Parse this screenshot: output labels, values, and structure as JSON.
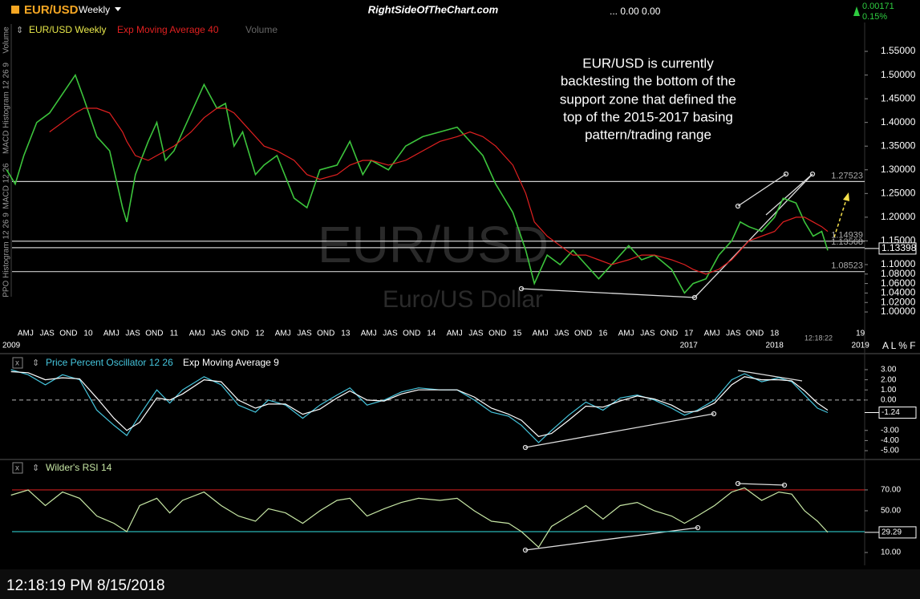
{
  "header": {
    "symbol": "EUR/USD",
    "interval": "Weekly",
    "site": "RightSideOfTheChart.com",
    "ohlc": "... 0.00 0.00",
    "change": "0.00171",
    "change_pct": "0.15%"
  },
  "side_labels": [
    "Volume",
    "MACD Histogram 12 26 9",
    "MACD 12 26",
    "PPO Histogram 12 26 9"
  ],
  "chart_data": [
    {
      "type": "line",
      "watermark": "EUR/USD",
      "subtitle": "Euro/US Dollar",
      "annotation": [
        "EUR/USD is currently",
        "backtesting the bottom of the",
        "support zone that defined the",
        "top of the 2015-2017 basing",
        "pattern/trading range"
      ],
      "volume_label": "Volume",
      "clock": "12:18:22",
      "toolbar": "A L % F",
      "x": [
        2009.05,
        2009.15,
        2009.25,
        2009.4,
        2009.55,
        2009.7,
        2009.85,
        2009.95,
        2010.1,
        2010.25,
        2010.4,
        2010.45,
        2010.55,
        2010.7,
        2010.8,
        2010.9,
        2011.0,
        2011.2,
        2011.35,
        2011.5,
        2011.6,
        2011.7,
        2011.8,
        2011.95,
        2012.05,
        2012.2,
        2012.4,
        2012.55,
        2012.7,
        2012.9,
        2013.05,
        2013.2,
        2013.3,
        2013.5,
        2013.7,
        2013.9,
        2014.1,
        2014.3,
        2014.45,
        2014.6,
        2014.75,
        2014.95,
        2015.1,
        2015.2,
        2015.35,
        2015.5,
        2015.65,
        2015.8,
        2015.95,
        2016.1,
        2016.3,
        2016.45,
        2016.6,
        2016.8,
        2016.95,
        2017.05,
        2017.2,
        2017.35,
        2017.5,
        2017.6,
        2017.7,
        2017.85,
        2018.0,
        2018.1,
        2018.25,
        2018.35,
        2018.45,
        2018.55,
        2018.62
      ],
      "series": [
        {
          "name": "EUR/USD Weekly",
          "color": "#3cc43c",
          "legend_color": "#e8e84a",
          "values": [
            1.3,
            1.27,
            1.33,
            1.4,
            1.42,
            1.46,
            1.5,
            1.45,
            1.37,
            1.34,
            1.22,
            1.19,
            1.29,
            1.36,
            1.4,
            1.32,
            1.34,
            1.42,
            1.48,
            1.43,
            1.44,
            1.35,
            1.38,
            1.29,
            1.31,
            1.33,
            1.24,
            1.22,
            1.3,
            1.31,
            1.36,
            1.29,
            1.32,
            1.3,
            1.35,
            1.37,
            1.38,
            1.39,
            1.36,
            1.33,
            1.27,
            1.21,
            1.13,
            1.06,
            1.12,
            1.1,
            1.13,
            1.1,
            1.07,
            1.1,
            1.14,
            1.11,
            1.12,
            1.09,
            1.04,
            1.06,
            1.07,
            1.12,
            1.15,
            1.19,
            1.18,
            1.17,
            1.2,
            1.24,
            1.23,
            1.19,
            1.16,
            1.17,
            1.13
          ]
        },
        {
          "name": "Exp Moving Average 40",
          "color": "#e02020",
          "legend_color": "#e02020",
          "values": [
            null,
            null,
            null,
            null,
            1.38,
            1.4,
            1.42,
            1.43,
            1.43,
            1.42,
            1.38,
            1.36,
            1.33,
            1.32,
            1.33,
            1.34,
            1.35,
            1.38,
            1.41,
            1.43,
            1.43,
            1.42,
            1.4,
            1.37,
            1.35,
            1.34,
            1.32,
            1.29,
            1.28,
            1.29,
            1.31,
            1.32,
            1.32,
            1.31,
            1.32,
            1.34,
            1.36,
            1.37,
            1.38,
            1.37,
            1.35,
            1.31,
            1.25,
            1.19,
            1.16,
            1.14,
            1.12,
            1.12,
            1.11,
            1.1,
            1.11,
            1.12,
            1.12,
            1.11,
            1.1,
            1.09,
            1.08,
            1.09,
            1.11,
            1.13,
            1.15,
            1.16,
            1.17,
            1.19,
            1.2,
            1.2,
            1.19,
            1.18,
            1.17
          ]
        }
      ],
      "xlim": [
        2009,
        2019.05
      ],
      "ylim": [
        0.973,
        1.611
      ],
      "yticks": [
        {
          "value": 1.55,
          "label": "1.55000"
        },
        {
          "value": 1.5,
          "label": "1.50000"
        },
        {
          "value": 1.45,
          "label": "1.45000"
        },
        {
          "value": 1.4,
          "label": "1.40000"
        },
        {
          "value": 1.35,
          "label": "1.35000"
        },
        {
          "value": 1.3,
          "label": "1.30000"
        },
        {
          "value": 1.25,
          "label": "1.25000"
        },
        {
          "value": 1.2,
          "label": "1.20000"
        },
        {
          "value": 1.15,
          "label": "1.15000"
        },
        {
          "value": 1.1,
          "label": "1.10000"
        },
        {
          "value": 1.08,
          "label": "1.08000"
        },
        {
          "value": 1.06,
          "label": "1.06000"
        },
        {
          "value": 1.04,
          "label": "1.04000"
        },
        {
          "value": 1.02,
          "label": "1.02000"
        },
        {
          "value": 1.0,
          "label": "1.00000"
        }
      ],
      "hlines": [
        {
          "value": 1.27523,
          "label": "1.27523"
        },
        {
          "value": 1.14939,
          "label": "1.14939"
        },
        {
          "value": 1.13568,
          "label": "1.13568"
        },
        {
          "value": 1.08523,
          "label": "1.08523"
        }
      ],
      "last": {
        "value": 1.13398,
        "label": "1.13398"
      },
      "xticks": [
        {
          "value": 2009.27,
          "label": "AMJ"
        },
        {
          "value": 2009.52,
          "label": "JAS"
        },
        {
          "value": 2009.77,
          "label": "OND"
        },
        {
          "value": 2010,
          "label": "10"
        },
        {
          "value": 2010.27,
          "label": "AMJ"
        },
        {
          "value": 2010.52,
          "label": "JAS"
        },
        {
          "value": 2010.77,
          "label": "OND"
        },
        {
          "value": 2011,
          "label": "11"
        },
        {
          "value": 2011.27,
          "label": "AMJ"
        },
        {
          "value": 2011.52,
          "label": "JAS"
        },
        {
          "value": 2011.77,
          "label": "OND"
        },
        {
          "value": 2012,
          "label": "12"
        },
        {
          "value": 2012.27,
          "label": "AMJ"
        },
        {
          "value": 2012.52,
          "label": "JAS"
        },
        {
          "value": 2012.77,
          "label": "OND"
        },
        {
          "value": 2013,
          "label": "13"
        },
        {
          "value": 2013.27,
          "label": "AMJ"
        },
        {
          "value": 2013.52,
          "label": "JAS"
        },
        {
          "value": 2013.77,
          "label": "OND"
        },
        {
          "value": 2014,
          "label": "14"
        },
        {
          "value": 2014.27,
          "label": "AMJ"
        },
        {
          "value": 2014.52,
          "label": "JAS"
        },
        {
          "value": 2014.77,
          "label": "OND"
        },
        {
          "value": 2015,
          "label": "15"
        },
        {
          "value": 2015.27,
          "label": "AMJ"
        },
        {
          "value": 2015.52,
          "label": "JAS"
        },
        {
          "value": 2015.77,
          "label": "OND"
        },
        {
          "value": 2016,
          "label": "16"
        },
        {
          "value": 2016.27,
          "label": "AMJ"
        },
        {
          "value": 2016.52,
          "label": "JAS"
        },
        {
          "value": 2016.77,
          "label": "OND"
        },
        {
          "value": 2017,
          "label": "17"
        },
        {
          "value": 2017.27,
          "label": "AMJ"
        },
        {
          "value": 2017.52,
          "label": "JAS"
        },
        {
          "value": 2017.77,
          "label": "OND"
        },
        {
          "value": 2018,
          "label": "18"
        },
        {
          "value": 2019,
          "label": "19"
        }
      ],
      "xticks2": [
        2009,
        2017,
        2018,
        2019
      ]
    },
    {
      "type": "line",
      "x": [
        2009.1,
        2009.3,
        2009.5,
        2009.7,
        2009.9,
        2010.1,
        2010.3,
        2010.45,
        2010.6,
        2010.8,
        2010.95,
        2011.1,
        2011.35,
        2011.55,
        2011.75,
        2011.95,
        2012.1,
        2012.3,
        2012.5,
        2012.7,
        2012.9,
        2013.05,
        2013.25,
        2013.45,
        2013.65,
        2013.85,
        2014.1,
        2014.3,
        2014.5,
        2014.7,
        2014.9,
        2015.05,
        2015.25,
        2015.4,
        2015.6,
        2015.8,
        2016.0,
        2016.2,
        2016.4,
        2016.6,
        2016.8,
        2016.95,
        2017.1,
        2017.3,
        2017.5,
        2017.65,
        2017.85,
        2018.05,
        2018.2,
        2018.35,
        2018.5,
        2018.62
      ],
      "series": [
        {
          "name": "Price Percent Oscillator 12 26",
          "color": "#45c4dc",
          "values": [
            3.0,
            2.5,
            1.5,
            2.5,
            2.0,
            -1.0,
            -2.5,
            -3.5,
            -1.5,
            1.0,
            -0.3,
            1.0,
            2.3,
            1.5,
            -0.5,
            -1.2,
            0.0,
            -0.5,
            -1.8,
            -0.5,
            0.5,
            1.2,
            -0.5,
            0.0,
            0.8,
            1.2,
            1.0,
            1.0,
            0.0,
            -1.2,
            -1.6,
            -2.5,
            -4.2,
            -3.0,
            -1.5,
            -0.2,
            -1.0,
            0.2,
            0.5,
            0.0,
            -0.8,
            -1.5,
            -1.0,
            0.0,
            2.0,
            2.6,
            1.8,
            2.2,
            1.8,
            0.5,
            -0.8,
            -1.24
          ]
        },
        {
          "name": "Exp Moving Average 9",
          "color": "#ffffff",
          "values": [
            2.8,
            2.7,
            2.0,
            2.2,
            2.1,
            0.2,
            -1.8,
            -3.0,
            -2.2,
            0.2,
            0.0,
            0.6,
            2.0,
            1.8,
            0.0,
            -0.8,
            -0.4,
            -0.4,
            -1.4,
            -0.9,
            0.2,
            0.9,
            0.0,
            -0.1,
            0.6,
            1.0,
            1.0,
            1.0,
            0.3,
            -0.8,
            -1.4,
            -2.0,
            -3.6,
            -3.3,
            -2.0,
            -0.6,
            -0.7,
            -0.1,
            0.4,
            0.1,
            -0.5,
            -1.2,
            -1.1,
            -0.3,
            1.5,
            2.3,
            2.0,
            2.0,
            1.9,
            0.9,
            -0.3,
            -1.0
          ]
        }
      ],
      "xlim": [
        2009,
        2019.05
      ],
      "ylim": [
        -5.79,
        3.87
      ],
      "zero_line": true,
      "yticks": [
        {
          "value": 3,
          "label": "3.00"
        },
        {
          "value": 2,
          "label": "2.00"
        },
        {
          "value": 1,
          "label": "1.00"
        },
        {
          "value": 0,
          "label": "0.00"
        },
        {
          "value": -3,
          "label": "-3.00"
        },
        {
          "value": -4,
          "label": "-4.00"
        },
        {
          "value": -5,
          "label": "-5.00"
        }
      ],
      "last": {
        "value": -1.24,
        "label": "-1.24"
      }
    },
    {
      "type": "line",
      "x": [
        2009.1,
        2009.3,
        2009.5,
        2009.7,
        2009.9,
        2010.1,
        2010.3,
        2010.45,
        2010.6,
        2010.8,
        2010.95,
        2011.1,
        2011.35,
        2011.55,
        2011.75,
        2011.95,
        2012.1,
        2012.3,
        2012.5,
        2012.7,
        2012.9,
        2013.05,
        2013.25,
        2013.45,
        2013.65,
        2013.85,
        2014.1,
        2014.3,
        2014.5,
        2014.7,
        2014.9,
        2015.05,
        2015.25,
        2015.4,
        2015.6,
        2015.8,
        2016.0,
        2016.2,
        2016.4,
        2016.6,
        2016.8,
        2016.95,
        2017.1,
        2017.3,
        2017.5,
        2017.65,
        2017.85,
        2018.05,
        2018.2,
        2018.35,
        2018.5,
        2018.62
      ],
      "series": [
        {
          "name": "Wilder's RSI 14",
          "color": "#c6e6a4",
          "values": [
            65,
            70,
            55,
            68,
            62,
            45,
            38,
            30,
            55,
            62,
            48,
            60,
            68,
            55,
            45,
            40,
            52,
            48,
            38,
            50,
            60,
            62,
            45,
            52,
            58,
            62,
            60,
            62,
            50,
            40,
            38,
            30,
            15,
            35,
            45,
            55,
            42,
            55,
            58,
            50,
            45,
            38,
            45,
            55,
            68,
            72,
            60,
            68,
            66,
            50,
            40,
            29.29
          ]
        }
      ],
      "xlim": [
        2009,
        2019.05
      ],
      "ylim": [
        -2.3,
        93.8
      ],
      "levels": [
        70,
        30
      ],
      "level_colors": [
        "#c81e1e",
        "#2ab3b3"
      ],
      "yticks": [
        {
          "value": 70,
          "label": "70.00"
        },
        {
          "value": 50,
          "label": "50.00"
        },
        {
          "value": 10,
          "label": "10.00"
        }
      ],
      "last": {
        "value": 29.29,
        "label": "29.29"
      }
    }
  ],
  "footer": {
    "timestamp": "12:18:19 PM 8/15/2018"
  }
}
